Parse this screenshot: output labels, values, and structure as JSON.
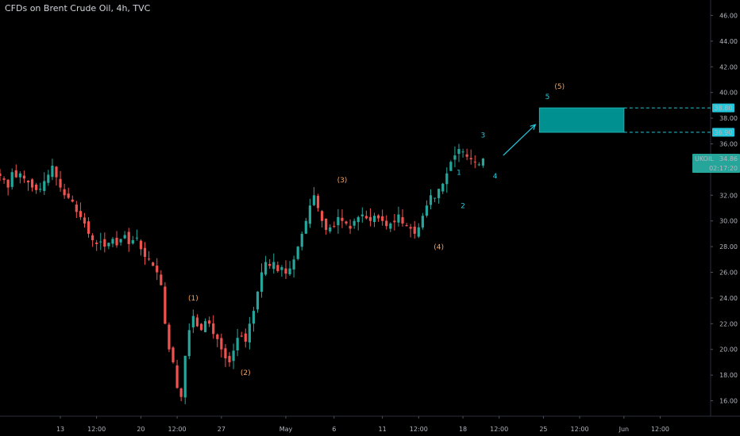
{
  "title": "CFDs on Brent Crude Oil, 4h, TVC",
  "colors": {
    "background": "#000000",
    "up": "#26a69a",
    "down": "#ef5350",
    "wick_up": "#26a69a",
    "wick_down": "#ef5350",
    "target_box": "#00a0a0",
    "primary_wave": "#f5a25d",
    "minor_wave": "#26c6da",
    "price_tag": "#26a69a",
    "target_tag": "#26c6da"
  },
  "chart_data": {
    "type": "candlestick",
    "symbol": "UKOIL",
    "last_price": "34.86",
    "countdown": "02:17:20",
    "ylim": [
      14.8,
      47.2
    ],
    "y_ticks": [
      "16.00",
      "18.00",
      "20.00",
      "22.00",
      "24.00",
      "26.00",
      "28.00",
      "30.00",
      "32.00",
      "34.00",
      "36.00",
      "38.00",
      "40.00",
      "42.00",
      "44.00",
      "46.00"
    ],
    "x_ticks": [
      {
        "label": "13",
        "bar": 15
      },
      {
        "label": "12:00",
        "bar": 24
      },
      {
        "label": "20",
        "bar": 35
      },
      {
        "label": "12:00",
        "bar": 44
      },
      {
        "label": "27",
        "bar": 55
      },
      {
        "label": "May",
        "bar": 71
      },
      {
        "label": "6",
        "bar": 83
      },
      {
        "label": "11",
        "bar": 95
      },
      {
        "label": "12:00",
        "bar": 104
      },
      {
        "label": "18",
        "bar": 115
      },
      {
        "label": "12:00",
        "bar": 124
      },
      {
        "label": "25",
        "bar": 135
      },
      {
        "label": "12:00",
        "bar": 144
      },
      {
        "label": "Jun",
        "bar": 155
      },
      {
        "label": "12:00",
        "bar": 164
      }
    ],
    "close_path": [
      33.5,
      33.2,
      32.6,
      33.8,
      33.4,
      33.7,
      33.3,
      33.0,
      32.6,
      32.4,
      32.5,
      33.1,
      33.6,
      34.3,
      33.4,
      32.6,
      32.0,
      31.8,
      31.5,
      30.7,
      30.3,
      29.8,
      29.0,
      28.5,
      28.2,
      28.4,
      28.0,
      28.3,
      28.6,
      28.1,
      28.6,
      28.9,
      28.2,
      28.5,
      28.7,
      27.8,
      27.2,
      27.0,
      26.5,
      26.0,
      25.0,
      22.0,
      20.0,
      19.0,
      17.0,
      16.3,
      19.5,
      21.5,
      22.6,
      21.8,
      21.5,
      22.2,
      22.0,
      21.2,
      20.8,
      20.0,
      19.3,
      19.0,
      19.9,
      20.9,
      21.0,
      20.6,
      22.0,
      23.0,
      24.5,
      26.0,
      26.8,
      26.5,
      26.8,
      26.1,
      26.4,
      25.9,
      26.3,
      27.0,
      28.0,
      29.0,
      30.0,
      31.2,
      32.0,
      31.0,
      30.0,
      29.3,
      29.5,
      29.6,
      30.3,
      30.0,
      29.8,
      29.4,
      30.0,
      30.3,
      30.5,
      30.2,
      30.0,
      30.4,
      30.2,
      30.0,
      29.6,
      29.8,
      29.9,
      30.5,
      29.8,
      29.6,
      29.4,
      29.0,
      29.5,
      30.4,
      31.2,
      32.0,
      31.8,
      32.5,
      32.9,
      33.7,
      34.6,
      35.1,
      35.6,
      35.4,
      35.0,
      34.8,
      34.6,
      34.4,
      34.86
    ],
    "primary_wave_labels": [
      {
        "label": "(1)",
        "bar": 48,
        "price": 23.8
      },
      {
        "label": "(2)",
        "bar": 61,
        "price": 18.0
      },
      {
        "label": "(3)",
        "bar": 85,
        "price": 33.0
      },
      {
        "label": "(4)",
        "bar": 109,
        "price": 27.8
      },
      {
        "label": "(5)",
        "bar": 139,
        "price": 40.3
      }
    ],
    "minor_wave_labels": [
      {
        "label": "1",
        "bar": 114,
        "price": 33.6
      },
      {
        "label": "2",
        "bar": 115,
        "price": 31.0
      },
      {
        "label": "3",
        "bar": 120,
        "price": 36.5
      },
      {
        "label": "4",
        "bar": 123,
        "price": 33.3
      },
      {
        "label": "5",
        "bar": 136,
        "price": 39.5
      }
    ],
    "target_zone": {
      "low": 36.9,
      "high": 38.8,
      "bar_start": 134,
      "bar_end": 155,
      "low_label": "36.90",
      "high_label": "38.80"
    },
    "arrow": {
      "from_bar": 125,
      "from_price": 35.1,
      "to_bar": 133,
      "to_price": 37.5
    }
  }
}
